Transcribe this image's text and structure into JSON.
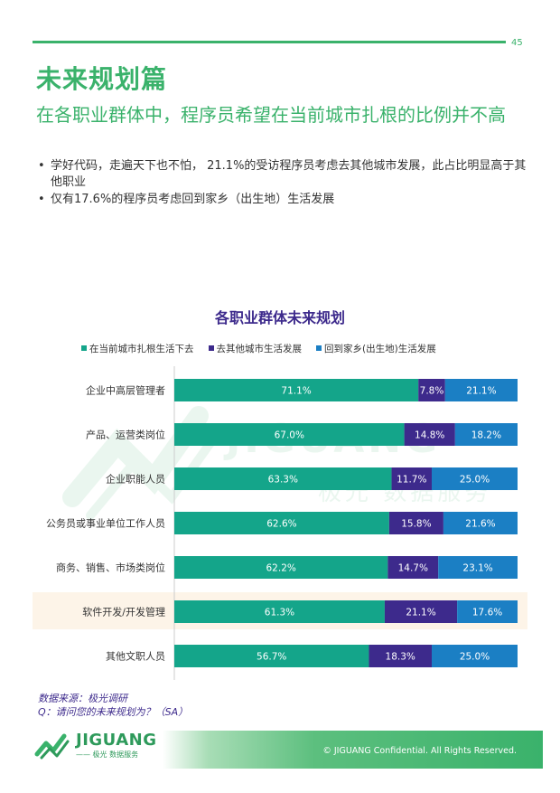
{
  "page": {
    "number": "45",
    "section_title": "未来规划篇",
    "headline": "在各职业群体中，程序员希望在当前城市扎根的比例并不高",
    "bullets": [
      "学好代码，走遍天下也不怕， 21.1%的受访程序员考虑去其他城市发展，此占比明显高于其他职业",
      "仅有17.6%的程序员考虑回到家乡（出生地）生活发展"
    ],
    "source_line1": "数据来源：极光调研",
    "source_line2": "Q：请问您的未来规划为？（SA）"
  },
  "brand": {
    "logo_text": "JIGUANG",
    "logo_sub": "—— 极光 数据服务",
    "watermark_text": "JIGUANG",
    "watermark_sub": "极光 数据服务",
    "copyright": "© JIGUANG Confidential. All Rights Reserved.",
    "color_green": "#3ab26b"
  },
  "chart_data": {
    "type": "bar",
    "orientation": "horizontal-stacked-100",
    "title": "各职业群体未来规划",
    "legend_position": "top",
    "categories": [
      "企业中高层管理者",
      "产品、运营类岗位",
      "企业职能人员",
      "公务员或事业单位工作人员",
      "商务、销售、市场类岗位",
      "软件开发/开发管理",
      "其他文职人员"
    ],
    "highlighted_category": "软件开发/开发管理",
    "series": [
      {
        "name": "在当前城市扎根生活下去",
        "color": "#14a58a",
        "values": [
          71.1,
          67.0,
          63.3,
          62.6,
          62.2,
          61.3,
          56.7
        ]
      },
      {
        "name": "去其他城市生活发展",
        "color": "#3d2a8c",
        "values": [
          7.8,
          14.8,
          11.7,
          15.8,
          14.7,
          21.1,
          18.3
        ]
      },
      {
        "name": "回到家乡(出生地)生活发展",
        "color": "#1b7fc4",
        "values": [
          21.1,
          18.2,
          25.0,
          21.6,
          23.1,
          17.6,
          25.0
        ]
      }
    ],
    "value_suffix": "%"
  }
}
